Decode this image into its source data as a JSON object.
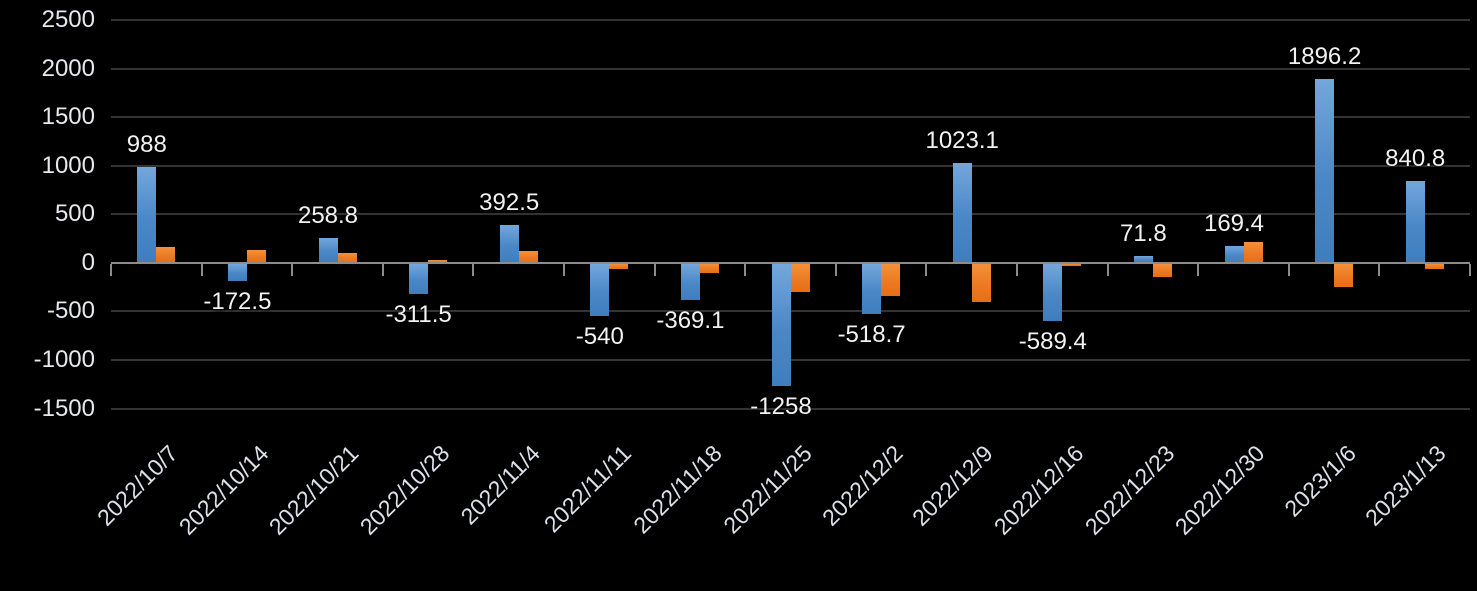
{
  "chart_data": {
    "type": "bar",
    "title": "",
    "xlabel": "",
    "ylabel": "",
    "categories": [
      "2022/10/7",
      "2022/10/14",
      "2022/10/21",
      "2022/10/28",
      "2022/11/4",
      "2022/11/11",
      "2022/11/18",
      "2022/11/25",
      "2022/12/2",
      "2022/12/9",
      "2022/12/16",
      "2022/12/23",
      "2022/12/30",
      "2023/1/6",
      "2023/1/13"
    ],
    "series": [
      {
        "name": "blue-series",
        "color": "#5B9BD5",
        "gradient": [
          "#74A7DB",
          "#3F7EBE"
        ],
        "values": [
          988,
          -172.5,
          258.8,
          -311.5,
          392.5,
          -540,
          -369.1,
          -1258,
          -518.7,
          1023.1,
          -589.4,
          71.8,
          169.4,
          1896.2,
          840.8
        ],
        "data_labels": [
          "988",
          "-172.5",
          "258.8",
          "-311.5",
          "392.5",
          "-540",
          "-369.1",
          "-1258",
          "-518.7",
          "1023.1",
          "-589.4",
          "71.8",
          "169.4",
          "1896.2",
          "840.8"
        ]
      },
      {
        "name": "orange-series",
        "color": "#ED7D31",
        "gradient": [
          "#F49139",
          "#E66E17"
        ],
        "values": [
          160,
          130,
          100,
          30,
          120,
          -50,
          -90,
          -290,
          -330,
          -390,
          -25,
          -140,
          210,
          -240,
          -50
        ],
        "data_labels": []
      }
    ],
    "y_axis": {
      "min": -1500,
      "max": 2500,
      "step": 500,
      "tick_labels": [
        "2500",
        "2000",
        "1500",
        "1000",
        "500",
        "0",
        "-500",
        "-1000",
        "-1500"
      ]
    },
    "x_axis": {
      "label_rotation_deg": 45
    },
    "grid": true,
    "legend": false,
    "background": "#000000",
    "colors": {
      "grid": "#343434",
      "axis": "#8C8C8C",
      "tick_label": "#E6E8EB",
      "data_label": "#F2F2F2"
    }
  }
}
